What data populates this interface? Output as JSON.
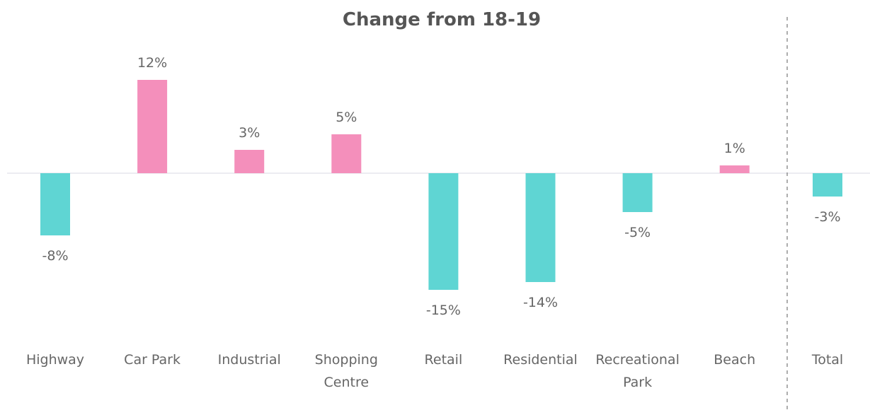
{
  "chart_data": {
    "type": "bar",
    "title": "Change from 18-19",
    "xlabel": "",
    "ylabel": "",
    "categories": [
      "Highway",
      "Car Park",
      "Industrial",
      "Shopping Centre",
      "Retail",
      "Residential",
      "Recreational Park",
      "Beach",
      "Total"
    ],
    "category_lines": [
      [
        "Highway"
      ],
      [
        "Car Park"
      ],
      [
        "Industrial"
      ],
      [
        "Shopping",
        "Centre"
      ],
      [
        "Retail"
      ],
      [
        "Residential"
      ],
      [
        "Recreational",
        "Park"
      ],
      [
        "Beach"
      ],
      [
        "Total"
      ]
    ],
    "values": [
      -8,
      12,
      3,
      5,
      -15,
      -14,
      -5,
      1,
      -3
    ],
    "value_labels": [
      "-8%",
      "12%",
      "3%",
      "5%",
      "-15%",
      "-14%",
      "-5%",
      "1%",
      "-3%"
    ],
    "ylim": [
      -16,
      12.5
    ],
    "grid": false,
    "legend": "none",
    "separator_before": "Total",
    "colors": {
      "positive": "#F48FBB",
      "negative": "#5FD5D3",
      "baseline": "#D9D9E3",
      "separator": "#777777",
      "title": "#555555",
      "text": "#666666"
    }
  }
}
